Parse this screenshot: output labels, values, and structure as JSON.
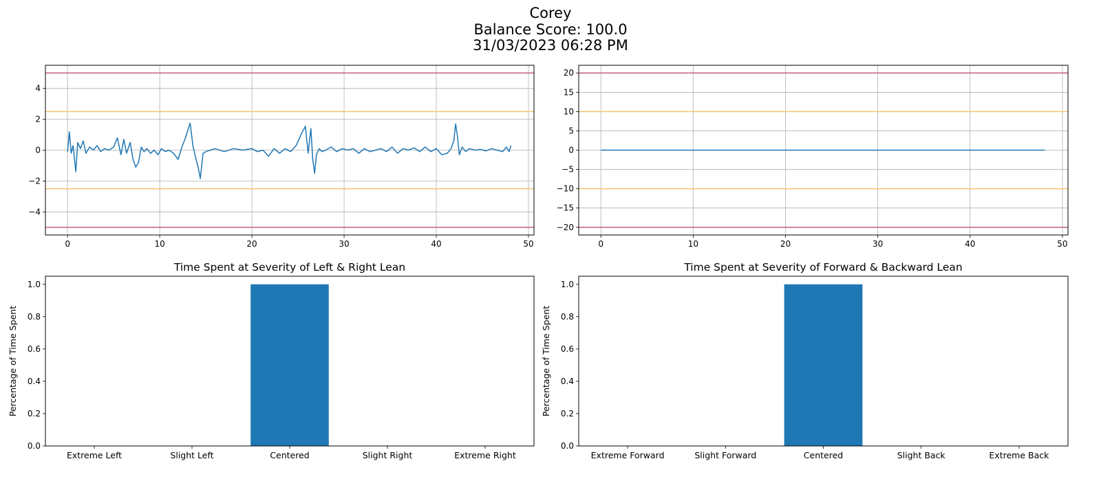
{
  "header": {
    "name": "Corey",
    "balance_score": "Balance Score: 100.0",
    "timestamp": "31/03/2023 06:28 PM"
  },
  "colors": {
    "series": "#1f77b4",
    "grid": "#b0b0b0",
    "warning_line": "#f2c46d",
    "limit_line": "#c0506e"
  },
  "chart_data": [
    {
      "type": "line",
      "id": "left-right-trace",
      "title": "",
      "xlabel": "",
      "ylabel": "",
      "xlim": [
        -2.4,
        50.6
      ],
      "ylim": [
        -5.5,
        5.5
      ],
      "xticks": [
        0,
        10,
        20,
        30,
        40,
        50
      ],
      "yticks": [
        -4,
        -2,
        0,
        2,
        4
      ],
      "grid": true,
      "reference_lines": [
        {
          "y": 5,
          "kind": "limit"
        },
        {
          "y": 2.5,
          "kind": "warning"
        },
        {
          "y": -2.5,
          "kind": "warning"
        },
        {
          "y": -5,
          "kind": "limit"
        }
      ],
      "series": [
        {
          "x": [
            0,
            0.2,
            0.4,
            0.6,
            0.9,
            1.1,
            1.4,
            1.7,
            2.0,
            2.4,
            2.8,
            3.2,
            3.6,
            4.0,
            4.5,
            5.0,
            5.4,
            5.8,
            6.1,
            6.4,
            6.8,
            7.1,
            7.4,
            7.7,
            8.0,
            8.3,
            8.6,
            9.0,
            9.4,
            9.8,
            10.2,
            10.6,
            11.0,
            11.5,
            12.0,
            12.4,
            12.8,
            13.0,
            13.3,
            13.6,
            13.9,
            14.2,
            14.4,
            14.7,
            15.0,
            15.5,
            16.0,
            17.0,
            18.0,
            19.0,
            20.0,
            20.6,
            21.2,
            21.8,
            22.4,
            23.0,
            23.6,
            24.2,
            24.8,
            25.4,
            25.8,
            26.1,
            26.4,
            26.6,
            26.8,
            27.0,
            27.3,
            27.6,
            28.0,
            28.6,
            29.2,
            29.8,
            30.4,
            31.0,
            31.6,
            32.2,
            32.8,
            33.4,
            34.0,
            34.6,
            35.2,
            35.8,
            36.4,
            37.0,
            37.6,
            38.2,
            38.8,
            39.4,
            40.0,
            40.6,
            41.2,
            41.6,
            41.9,
            42.1,
            42.3,
            42.5,
            42.8,
            43.2,
            43.6,
            44.2,
            44.8,
            45.4,
            46.0,
            46.6,
            47.2,
            47.6,
            47.9,
            48.1
          ],
          "y": [
            -0.1,
            1.2,
            -0.2,
            0.3,
            -1.4,
            0.5,
            0.1,
            0.6,
            -0.2,
            0.2,
            0.0,
            0.3,
            -0.1,
            0.1,
            0.0,
            0.2,
            0.8,
            -0.3,
            0.7,
            -0.2,
            0.5,
            -0.6,
            -1.1,
            -0.8,
            0.2,
            -0.1,
            0.1,
            -0.2,
            0.0,
            -0.3,
            0.1,
            -0.1,
            0.0,
            -0.2,
            -0.6,
            0.2,
            0.8,
            1.2,
            1.75,
            0.3,
            -0.5,
            -1.2,
            -1.85,
            -0.2,
            -0.1,
            0.0,
            0.1,
            -0.1,
            0.1,
            0.0,
            0.1,
            -0.1,
            0.0,
            -0.4,
            0.1,
            -0.2,
            0.1,
            -0.1,
            0.3,
            1.1,
            1.55,
            -0.2,
            1.4,
            -0.6,
            -1.5,
            -0.3,
            0.1,
            -0.1,
            0.0,
            0.2,
            -0.1,
            0.1,
            0.0,
            0.1,
            -0.2,
            0.1,
            -0.1,
            0.0,
            0.1,
            -0.1,
            0.2,
            -0.2,
            0.1,
            0.0,
            0.15,
            -0.1,
            0.2,
            -0.1,
            0.1,
            -0.3,
            -0.2,
            0.1,
            0.6,
            1.7,
            0.9,
            -0.3,
            0.2,
            -0.1,
            0.1,
            0.0,
            0.05,
            -0.05,
            0.1,
            0.0,
            -0.1,
            0.2,
            -0.1,
            0.3
          ]
        }
      ]
    },
    {
      "type": "line",
      "id": "forward-back-trace",
      "title": "",
      "xlabel": "",
      "ylabel": "",
      "xlim": [
        -2.4,
        50.6
      ],
      "ylim": [
        -22,
        22
      ],
      "xticks": [
        0,
        10,
        20,
        30,
        40,
        50
      ],
      "yticks": [
        -20,
        -15,
        -10,
        -5,
        0,
        5,
        10,
        15,
        20
      ],
      "grid": true,
      "reference_lines": [
        {
          "y": 20,
          "kind": "limit"
        },
        {
          "y": 10,
          "kind": "warning"
        },
        {
          "y": -10,
          "kind": "warning"
        },
        {
          "y": -20,
          "kind": "limit"
        }
      ],
      "series": [
        {
          "x": [
            0,
            48.1
          ],
          "y": [
            0,
            0
          ]
        }
      ]
    },
    {
      "type": "bar",
      "id": "left-right-bars",
      "title": "Time Spent at Severity of Left & Right Lean",
      "xlabel": "",
      "ylabel": "Percentage of Time Spent",
      "categories": [
        "Extreme Left",
        "Slight Left",
        "Centered",
        "Slight Right",
        "Extreme Right"
      ],
      "values": [
        0.0,
        0.0,
        1.0,
        0.0,
        0.0
      ],
      "ylim": [
        0,
        1.05
      ],
      "yticks": [
        0.0,
        0.2,
        0.4,
        0.6,
        0.8,
        1.0
      ],
      "grid": false
    },
    {
      "type": "bar",
      "id": "forward-back-bars",
      "title": "Time Spent at Severity of Forward & Backward Lean",
      "xlabel": "",
      "ylabel": "Percentage of Time Spent",
      "categories": [
        "Extreme Forward",
        "Slight Forward",
        "Centered",
        "Slight Back",
        "Extreme Back"
      ],
      "values": [
        0.0,
        0.0,
        1.0,
        0.0,
        0.0
      ],
      "ylim": [
        0,
        1.05
      ],
      "yticks": [
        0.0,
        0.2,
        0.4,
        0.6,
        0.8,
        1.0
      ],
      "grid": false
    }
  ]
}
